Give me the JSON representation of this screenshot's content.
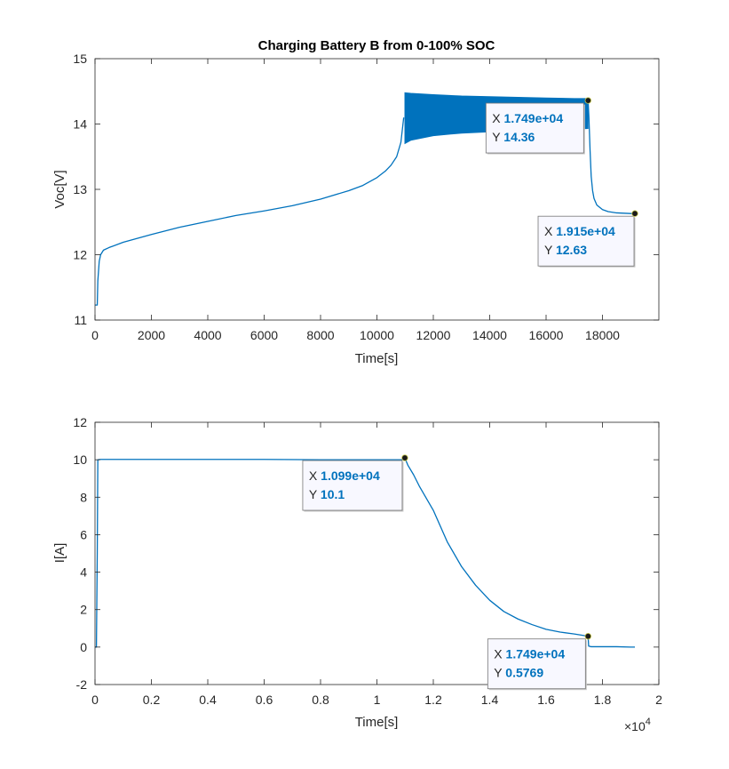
{
  "chart_data": [
    {
      "type": "line",
      "title": "Charging Battery B from 0-100% SOC",
      "xlabel": "Time[s]",
      "ylabel": "Voc[V]",
      "xlim": [
        0,
        20000
      ],
      "ylim": [
        11,
        15
      ],
      "xticks": [
        0,
        2000,
        4000,
        6000,
        8000,
        10000,
        12000,
        14000,
        16000,
        18000
      ],
      "xtick_labels": [
        "0",
        "2000",
        "4000",
        "6000",
        "8000",
        "10000",
        "12000",
        "14000",
        "16000",
        "18000"
      ],
      "yticks": [
        11,
        12,
        13,
        14,
        15
      ],
      "ytick_labels": [
        "11",
        "12",
        "13",
        "14",
        "15"
      ],
      "grid": false,
      "color": "#0072bd",
      "series": [
        {
          "x": [
            0,
            80,
            100,
            150,
            200,
            300,
            500,
            1000,
            2000,
            3000,
            4000,
            5000,
            6000,
            7000,
            8000,
            9000,
            9500,
            10000,
            10300,
            10500,
            10700,
            10850,
            10950
          ],
          "y": [
            11.23,
            11.23,
            11.6,
            11.9,
            12.0,
            12.07,
            12.11,
            12.19,
            12.31,
            12.42,
            12.51,
            12.6,
            12.67,
            12.75,
            12.85,
            12.98,
            13.06,
            13.18,
            13.28,
            13.37,
            13.5,
            13.72,
            14.1
          ]
        },
        {
          "type": "band",
          "x": [
            10990,
            11200,
            12000,
            13000,
            14000,
            15000,
            16000,
            17000,
            17490
          ],
          "upper": [
            14.48,
            14.47,
            14.45,
            14.43,
            14.42,
            14.41,
            14.4,
            14.39,
            14.39
          ],
          "lower": [
            13.7,
            13.75,
            13.82,
            13.86,
            13.88,
            13.9,
            13.91,
            13.92,
            13.93
          ]
        },
        {
          "x": [
            17490,
            17520,
            17560,
            17600,
            17650,
            17700,
            17800,
            18000,
            18200,
            18500,
            19000,
            19150
          ],
          "y": [
            14.36,
            14.1,
            13.6,
            13.2,
            12.98,
            12.86,
            12.76,
            12.69,
            12.66,
            12.64,
            12.63,
            12.63
          ]
        }
      ],
      "datatips": [
        {
          "x": 17490,
          "y": 14.36,
          "x_label": "X",
          "x_text": "1.749e+04",
          "y_label": "Y",
          "y_text": "14.36"
        },
        {
          "x": 19150,
          "y": 12.63,
          "x_label": "X",
          "x_text": "1.915e+04",
          "y_label": "Y",
          "y_text": "12.63"
        }
      ]
    },
    {
      "type": "line",
      "title": "",
      "xlabel": "Time[s]",
      "ylabel": "I[A]",
      "xlim": [
        0,
        2
      ],
      "ylim": [
        -2,
        12
      ],
      "xticks": [
        0,
        0.2,
        0.4,
        0.6,
        0.8,
        1,
        1.2,
        1.4,
        1.6,
        1.8,
        2
      ],
      "xtick_labels": [
        "0",
        "0.2",
        "0.4",
        "0.6",
        "0.8",
        "1",
        "1.2",
        "1.4",
        "1.6",
        "1.8",
        "2"
      ],
      "x_exponent_label": "×10",
      "x_exponent": "4",
      "yticks": [
        -2,
        0,
        2,
        4,
        6,
        8,
        10,
        12
      ],
      "ytick_labels": [
        "-2",
        "0",
        "2",
        "4",
        "6",
        "8",
        "10",
        "12"
      ],
      "grid": false,
      "color": "#0072bd",
      "series": [
        {
          "x": [
            0,
            0.005,
            0.008,
            0.01,
            0.02,
            0.2,
            0.4,
            0.6,
            0.8,
            1.0,
            1.09,
            1.099,
            1.11,
            1.13,
            1.15,
            1.2,
            1.25,
            1.3,
            1.35,
            1.4,
            1.45,
            1.5,
            1.55,
            1.6,
            1.65,
            1.7,
            1.749,
            1.751,
            1.76,
            1.8,
            1.85,
            1.9,
            1.915
          ],
          "y": [
            0,
            0,
            5,
            10,
            10.02,
            10.02,
            10.02,
            10.02,
            10.0,
            10.0,
            10.0,
            10.1,
            9.7,
            9.2,
            8.6,
            7.3,
            5.6,
            4.3,
            3.3,
            2.5,
            1.9,
            1.5,
            1.2,
            0.95,
            0.8,
            0.7,
            0.58,
            0.05,
            0.02,
            0.02,
            0.02,
            0.0,
            0.0
          ]
        }
      ],
      "datatips": [
        {
          "x": 1.099,
          "y": 10.1,
          "x_label": "X",
          "x_text": "1.099e+04",
          "y_label": "Y",
          "y_text": "10.1"
        },
        {
          "x": 1.749,
          "y": 0.5769,
          "x_label": "X",
          "x_text": "1.749e+04",
          "y_label": "Y",
          "y_text": "0.5769"
        }
      ]
    }
  ]
}
